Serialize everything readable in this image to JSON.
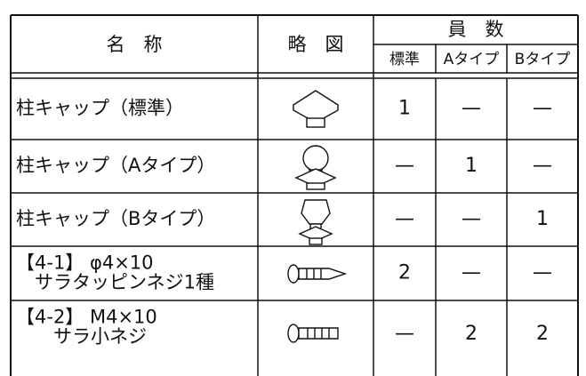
{
  "table": {
    "header": {
      "name": "名　称",
      "figure": "略　図",
      "count": "員　数",
      "sub": [
        "標準",
        "Aタイプ",
        "Bタイプ"
      ]
    },
    "rows": [
      {
        "name": [
          "柱キャップ（標準）"
        ],
        "counts": [
          "1",
          "—",
          "—"
        ]
      },
      {
        "name": [
          "柱キャップ（Aタイプ）"
        ],
        "counts": [
          "—",
          "1",
          "—"
        ]
      },
      {
        "name": [
          "柱キャップ（Bタイプ）"
        ],
        "counts": [
          "—",
          "—",
          "1"
        ]
      },
      {
        "name": [
          "【4-1】 φ4×10",
          "　サラタッピンネジ1種"
        ],
        "counts": [
          "2",
          "—",
          "—"
        ]
      },
      {
        "name": [
          "【4-2】 M4×10",
          "　　サラ小ネジ"
        ],
        "counts": [
          "—",
          "2",
          "2"
        ]
      }
    ]
  }
}
